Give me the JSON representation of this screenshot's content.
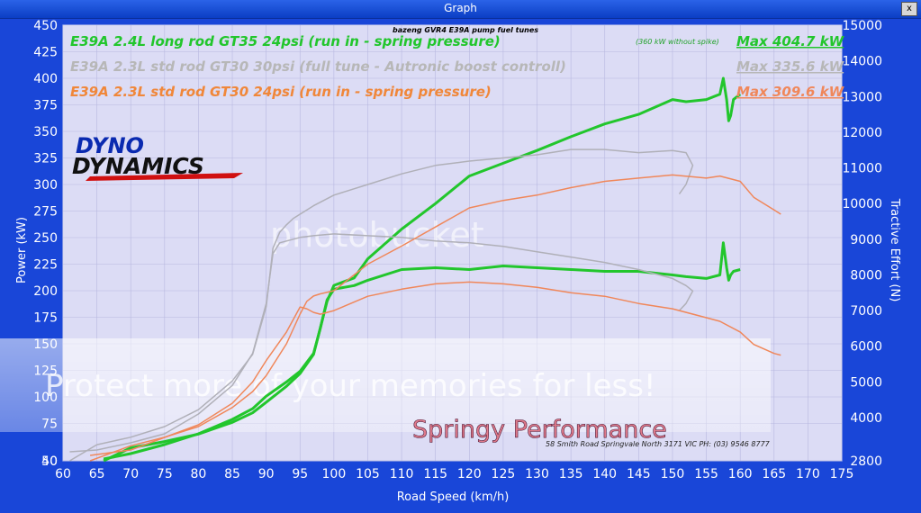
{
  "window": {
    "title": "Graph",
    "close_label": "x"
  },
  "header_note": "bazeng GVR4 E39A pump fuel tunes",
  "legend": [
    {
      "label": "E39A 2.4L long rod GT35 24psi (run in  - spring pressure)",
      "max": "Max 404.7 kW",
      "note": "(360 kW without spike)",
      "color": "#22c62c"
    },
    {
      "label": "E39A 2.3L std rod GT30 30psi (full tune - Autronic boost controll)",
      "max": "Max 335.6 kW",
      "color": "#b7b7b7"
    },
    {
      "label": "E39A 2.3L std rod GT30 24psi (run in  - spring pressure)",
      "max": "Max 309.6 kW",
      "color": "#f0873a"
    }
  ],
  "logo": {
    "line1": "DYNO",
    "line2": "DYNAMICS"
  },
  "sponsor": {
    "name": "Springy Performance",
    "address": "58 Smith Road Springvale North 3171 VIC   PH: (03) 9546 8777"
  },
  "watermark": {
    "brand": "photobucket",
    "tagline": "Protect more of your memories for less!"
  },
  "colors": {
    "plot_bg": "#dcdcf5",
    "frame": "#1946d8",
    "grid": "#b8b8e0"
  },
  "chart_data": {
    "type": "line",
    "xlabel": "Road Speed (km/h)",
    "ylabel": "Power (kW)",
    "y2label": "Tractive Effort (N)",
    "xlim": [
      60,
      175
    ],
    "ylim": [
      40,
      450
    ],
    "y2lim": [
      2800,
      15000
    ],
    "xticks": [
      60,
      65,
      70,
      75,
      80,
      85,
      90,
      95,
      100,
      105,
      110,
      115,
      120,
      125,
      130,
      135,
      140,
      145,
      150,
      155,
      160,
      165,
      170,
      175
    ],
    "yticks": [
      40,
      50,
      75,
      100,
      125,
      150,
      175,
      200,
      225,
      250,
      275,
      300,
      325,
      350,
      375,
      400,
      425,
      450
    ],
    "y2ticks": [
      2800,
      4000,
      5000,
      6000,
      7000,
      8000,
      9000,
      10000,
      11000,
      12000,
      13000,
      14000,
      15000
    ],
    "series": [
      {
        "name": "E39A 2.4L long rod GT35 24psi (run in  - spring pressure)",
        "axis": "power",
        "color": "#22c62c",
        "width": 3,
        "x": [
          66,
          70,
          75,
          80,
          85,
          88,
          90,
          93,
          95,
          97,
          98,
          99,
          100,
          103,
          105,
          110,
          115,
          120,
          125,
          130,
          135,
          140,
          145,
          150,
          152,
          155,
          157,
          157.5,
          158,
          158.3,
          158.6,
          159,
          160
        ],
        "y": [
          47,
          52,
          58,
          65,
          76,
          85,
          95,
          110,
          122,
          140,
          165,
          190,
          205,
          212,
          230,
          258,
          282,
          308,
          320,
          332,
          345,
          357,
          366,
          380,
          378,
          380,
          385,
          400,
          380,
          360,
          365,
          380,
          385
        ]
      },
      {
        "name": "E39A 2.4L long rod GT35 24psi (run in  - spring pressure) tractive",
        "axis": "effort",
        "color": "#22c62c",
        "width": 3,
        "x": [
          66,
          70,
          75,
          80,
          85,
          88,
          90,
          93,
          95,
          97,
          98,
          99,
          100,
          103,
          105,
          110,
          115,
          120,
          125,
          130,
          135,
          140,
          145,
          150,
          152,
          155,
          157,
          157.5,
          158,
          158.3,
          158.6,
          159,
          160
        ],
        "y": [
          2850,
          3000,
          3250,
          3550,
          3950,
          4250,
          4600,
          5000,
          5300,
          5800,
          6500,
          7300,
          7600,
          7700,
          7850,
          8150,
          8200,
          8150,
          8250,
          8200,
          8150,
          8100,
          8100,
          8000,
          7950,
          7900,
          8000,
          8900,
          8200,
          7850,
          8000,
          8100,
          8150
        ]
      },
      {
        "name": "E39A 2.3L std rod GT30 30psi (full tune - Autronic boost controll)",
        "axis": "power",
        "color": "#b0b0b8",
        "width": 1.5,
        "x": [
          61,
          65,
          70,
          75,
          80,
          85,
          88,
          90,
          91,
          92,
          93,
          94,
          95,
          97,
          100,
          105,
          110,
          115,
          120,
          125,
          130,
          135,
          140,
          145,
          150,
          152,
          153,
          152,
          151
        ],
        "y": [
          50,
          55,
          62,
          72,
          88,
          115,
          140,
          185,
          240,
          255,
          262,
          268,
          272,
          280,
          290,
          300,
          310,
          318,
          322,
          325,
          328,
          333,
          333,
          330,
          332,
          330,
          318,
          300,
          291
        ]
      },
      {
        "name": "E39A 2.3L std rod GT30 30psi (full tune - Autronic boost controll) tractive",
        "axis": "effort",
        "color": "#b0b0b8",
        "width": 1.5,
        "x": [
          61,
          65,
          70,
          75,
          80,
          85,
          88,
          90,
          91,
          92,
          93,
          94,
          95,
          97,
          100,
          105,
          110,
          115,
          120,
          125,
          130,
          135,
          140,
          145,
          150,
          152,
          153,
          152,
          151
        ],
        "y": [
          3050,
          3100,
          3300,
          3550,
          4100,
          4900,
          5800,
          7200,
          8600,
          8900,
          8950,
          9000,
          9050,
          9100,
          9150,
          9100,
          9050,
          8950,
          8900,
          8800,
          8650,
          8500,
          8350,
          8150,
          7900,
          7700,
          7550,
          7200,
          7000
        ]
      },
      {
        "name": "E39A 2.3L std rod GT30 24psi (run in  - spring pressure)",
        "axis": "power",
        "color": "#f0875a",
        "width": 1.5,
        "x": [
          64,
          70,
          75,
          80,
          85,
          88,
          90,
          93,
          95,
          96,
          97,
          98,
          100,
          105,
          110,
          115,
          120,
          125,
          130,
          135,
          140,
          145,
          150,
          155,
          157,
          160,
          162,
          165,
          166
        ],
        "y": [
          48,
          54,
          62,
          72,
          90,
          105,
          120,
          150,
          178,
          190,
          195,
          197,
          200,
          225,
          242,
          260,
          278,
          285,
          290,
          297,
          303,
          306,
          309,
          306,
          308,
          303,
          288,
          276,
          272
        ]
      },
      {
        "name": "E39A 2.3L std rod GT30 24psi (run in  - spring pressure) tractive",
        "axis": "effort",
        "color": "#f0875a",
        "width": 1.5,
        "x": [
          64,
          70,
          75,
          80,
          85,
          88,
          90,
          93,
          95,
          96,
          97,
          98,
          100,
          105,
          110,
          115,
          120,
          125,
          130,
          135,
          140,
          145,
          150,
          155,
          157,
          160,
          162,
          165,
          166
        ],
        "y": [
          2950,
          3100,
          3450,
          3800,
          4400,
          5000,
          5600,
          6400,
          7100,
          7050,
          6950,
          6900,
          7000,
          7400,
          7600,
          7750,
          7800,
          7750,
          7650,
          7500,
          7400,
          7200,
          7050,
          6800,
          6700,
          6400,
          6050,
          5800,
          5750
        ]
      }
    ],
    "annotations": [
      "Max 404.7 kW",
      "Max 335.6 kW",
      "Max 309.6 kW",
      "(360 kW without spike)"
    ],
    "grid": true,
    "legend_position": "top-left"
  }
}
